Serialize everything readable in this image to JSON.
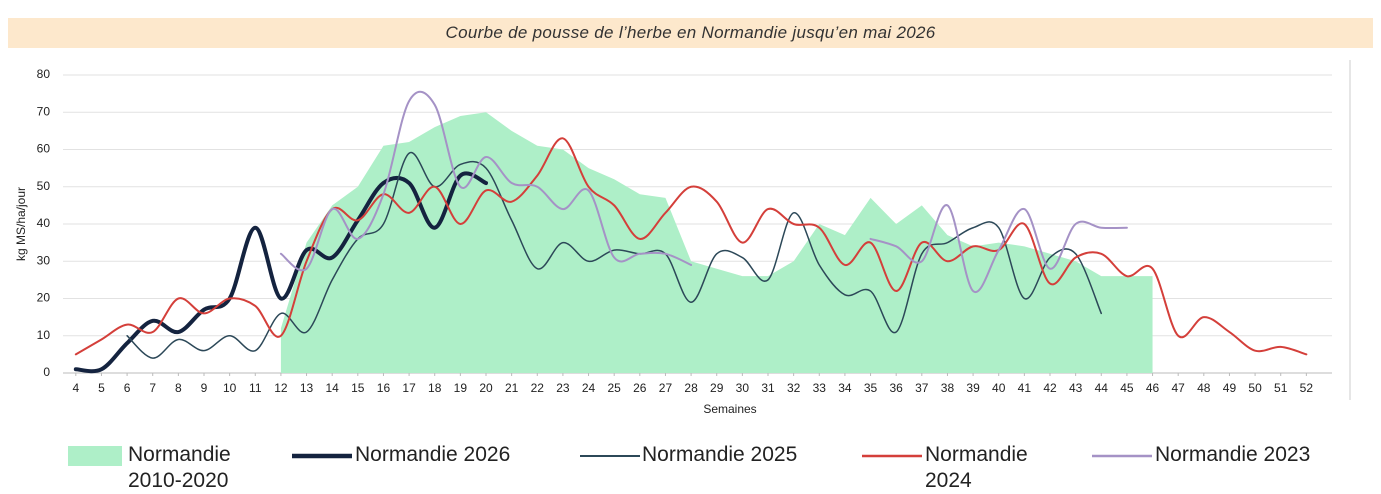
{
  "chart_data": {
    "type": "line",
    "title": "Courbe de pousse de l’herbe en Normandie jusqu’en mai 2026",
    "xlabel": "Semaines",
    "ylabel": "kg MS/ha/jour",
    "x": [
      4,
      5,
      6,
      7,
      8,
      9,
      10,
      11,
      12,
      13,
      14,
      15,
      16,
      17,
      18,
      19,
      20,
      21,
      22,
      23,
      24,
      25,
      26,
      27,
      28,
      29,
      30,
      31,
      32,
      33,
      34,
      35,
      36,
      37,
      38,
      39,
      40,
      41,
      42,
      43,
      44,
      45,
      46,
      47,
      48,
      49,
      50,
      51,
      52
    ],
    "xlim": [
      3.5,
      53
    ],
    "xticks": [
      4,
      5,
      6,
      7,
      8,
      9,
      10,
      11,
      12,
      13,
      14,
      15,
      16,
      17,
      18,
      19,
      20,
      21,
      22,
      23,
      24,
      25,
      26,
      27,
      28,
      29,
      30,
      31,
      32,
      33,
      34,
      35,
      36,
      37,
      38,
      39,
      40,
      41,
      42,
      43,
      44,
      45,
      46,
      47,
      48,
      49,
      50,
      51,
      52
    ],
    "ylim": [
      0,
      80
    ],
    "yticks": [
      0,
      10,
      20,
      30,
      40,
      50,
      60,
      70,
      80
    ],
    "grid": true,
    "series": [
      {
        "name": "Normandie 2010-2020",
        "type": "area",
        "color": "#aeefc8",
        "values": [
          null,
          null,
          null,
          null,
          null,
          null,
          null,
          null,
          12,
          35,
          45,
          50,
          61,
          62,
          66,
          69,
          70,
          65,
          61,
          60,
          55,
          52,
          48,
          47,
          30,
          28,
          26,
          26,
          30,
          40,
          37,
          47,
          40,
          45,
          37,
          34,
          35,
          34,
          32,
          30,
          26,
          26,
          26,
          null,
          null,
          null,
          null,
          null,
          null
        ]
      },
      {
        "name": "Normandie 2026",
        "color": "#14233f",
        "line_width": 4,
        "values": [
          1,
          1,
          8,
          14,
          11,
          17,
          20,
          39,
          20,
          33,
          31,
          41,
          51,
          51,
          39,
          53,
          51,
          null,
          null,
          null,
          null,
          null,
          null,
          null,
          null,
          null,
          null,
          null,
          null,
          null,
          null,
          null,
          null,
          null,
          null,
          null,
          null,
          null,
          null,
          null,
          null,
          null,
          null,
          null,
          null,
          null,
          null,
          null,
          null
        ]
      },
      {
        "name": "Normandie 2025",
        "color": "#2c4858",
        "line_width": 1.5,
        "values": [
          null,
          null,
          10,
          4,
          9,
          6,
          10,
          6,
          16,
          11,
          25,
          36,
          40,
          59,
          50,
          56,
          55,
          41,
          28,
          35,
          30,
          33,
          32,
          32,
          19,
          32,
          31,
          25,
          43,
          29,
          21,
          22,
          11,
          32,
          35,
          39,
          39,
          20,
          31,
          32,
          16,
          null,
          null,
          null,
          null,
          null,
          null,
          null,
          null
        ]
      },
      {
        "name": "Normandie 2024",
        "color": "#d43f3a",
        "line_width": 2,
        "values": [
          5,
          9,
          13,
          11,
          20,
          16,
          20,
          18,
          10,
          30,
          44,
          41,
          48,
          43,
          50,
          40,
          49,
          46,
          53,
          63,
          50,
          45,
          36,
          43,
          50,
          46,
          35,
          44,
          40,
          39,
          29,
          35,
          22,
          35,
          30,
          34,
          33,
          40,
          24,
          31,
          32,
          26,
          28,
          10,
          15,
          11,
          6,
          7,
          5
        ]
      },
      {
        "name": "Normandie 2023",
        "color": "#a592c6",
        "line_width": 2,
        "values": [
          null,
          null,
          null,
          null,
          null,
          null,
          null,
          null,
          32,
          28,
          44,
          36,
          48,
          73,
          72,
          50,
          58,
          51,
          50,
          44,
          49,
          31,
          32,
          32,
          29,
          null,
          null,
          null,
          null,
          null,
          null,
          36,
          34,
          30,
          45,
          22,
          33,
          44,
          28,
          40,
          39,
          39,
          null,
          null,
          null,
          null,
          null,
          null,
          null
        ]
      }
    ]
  }
}
